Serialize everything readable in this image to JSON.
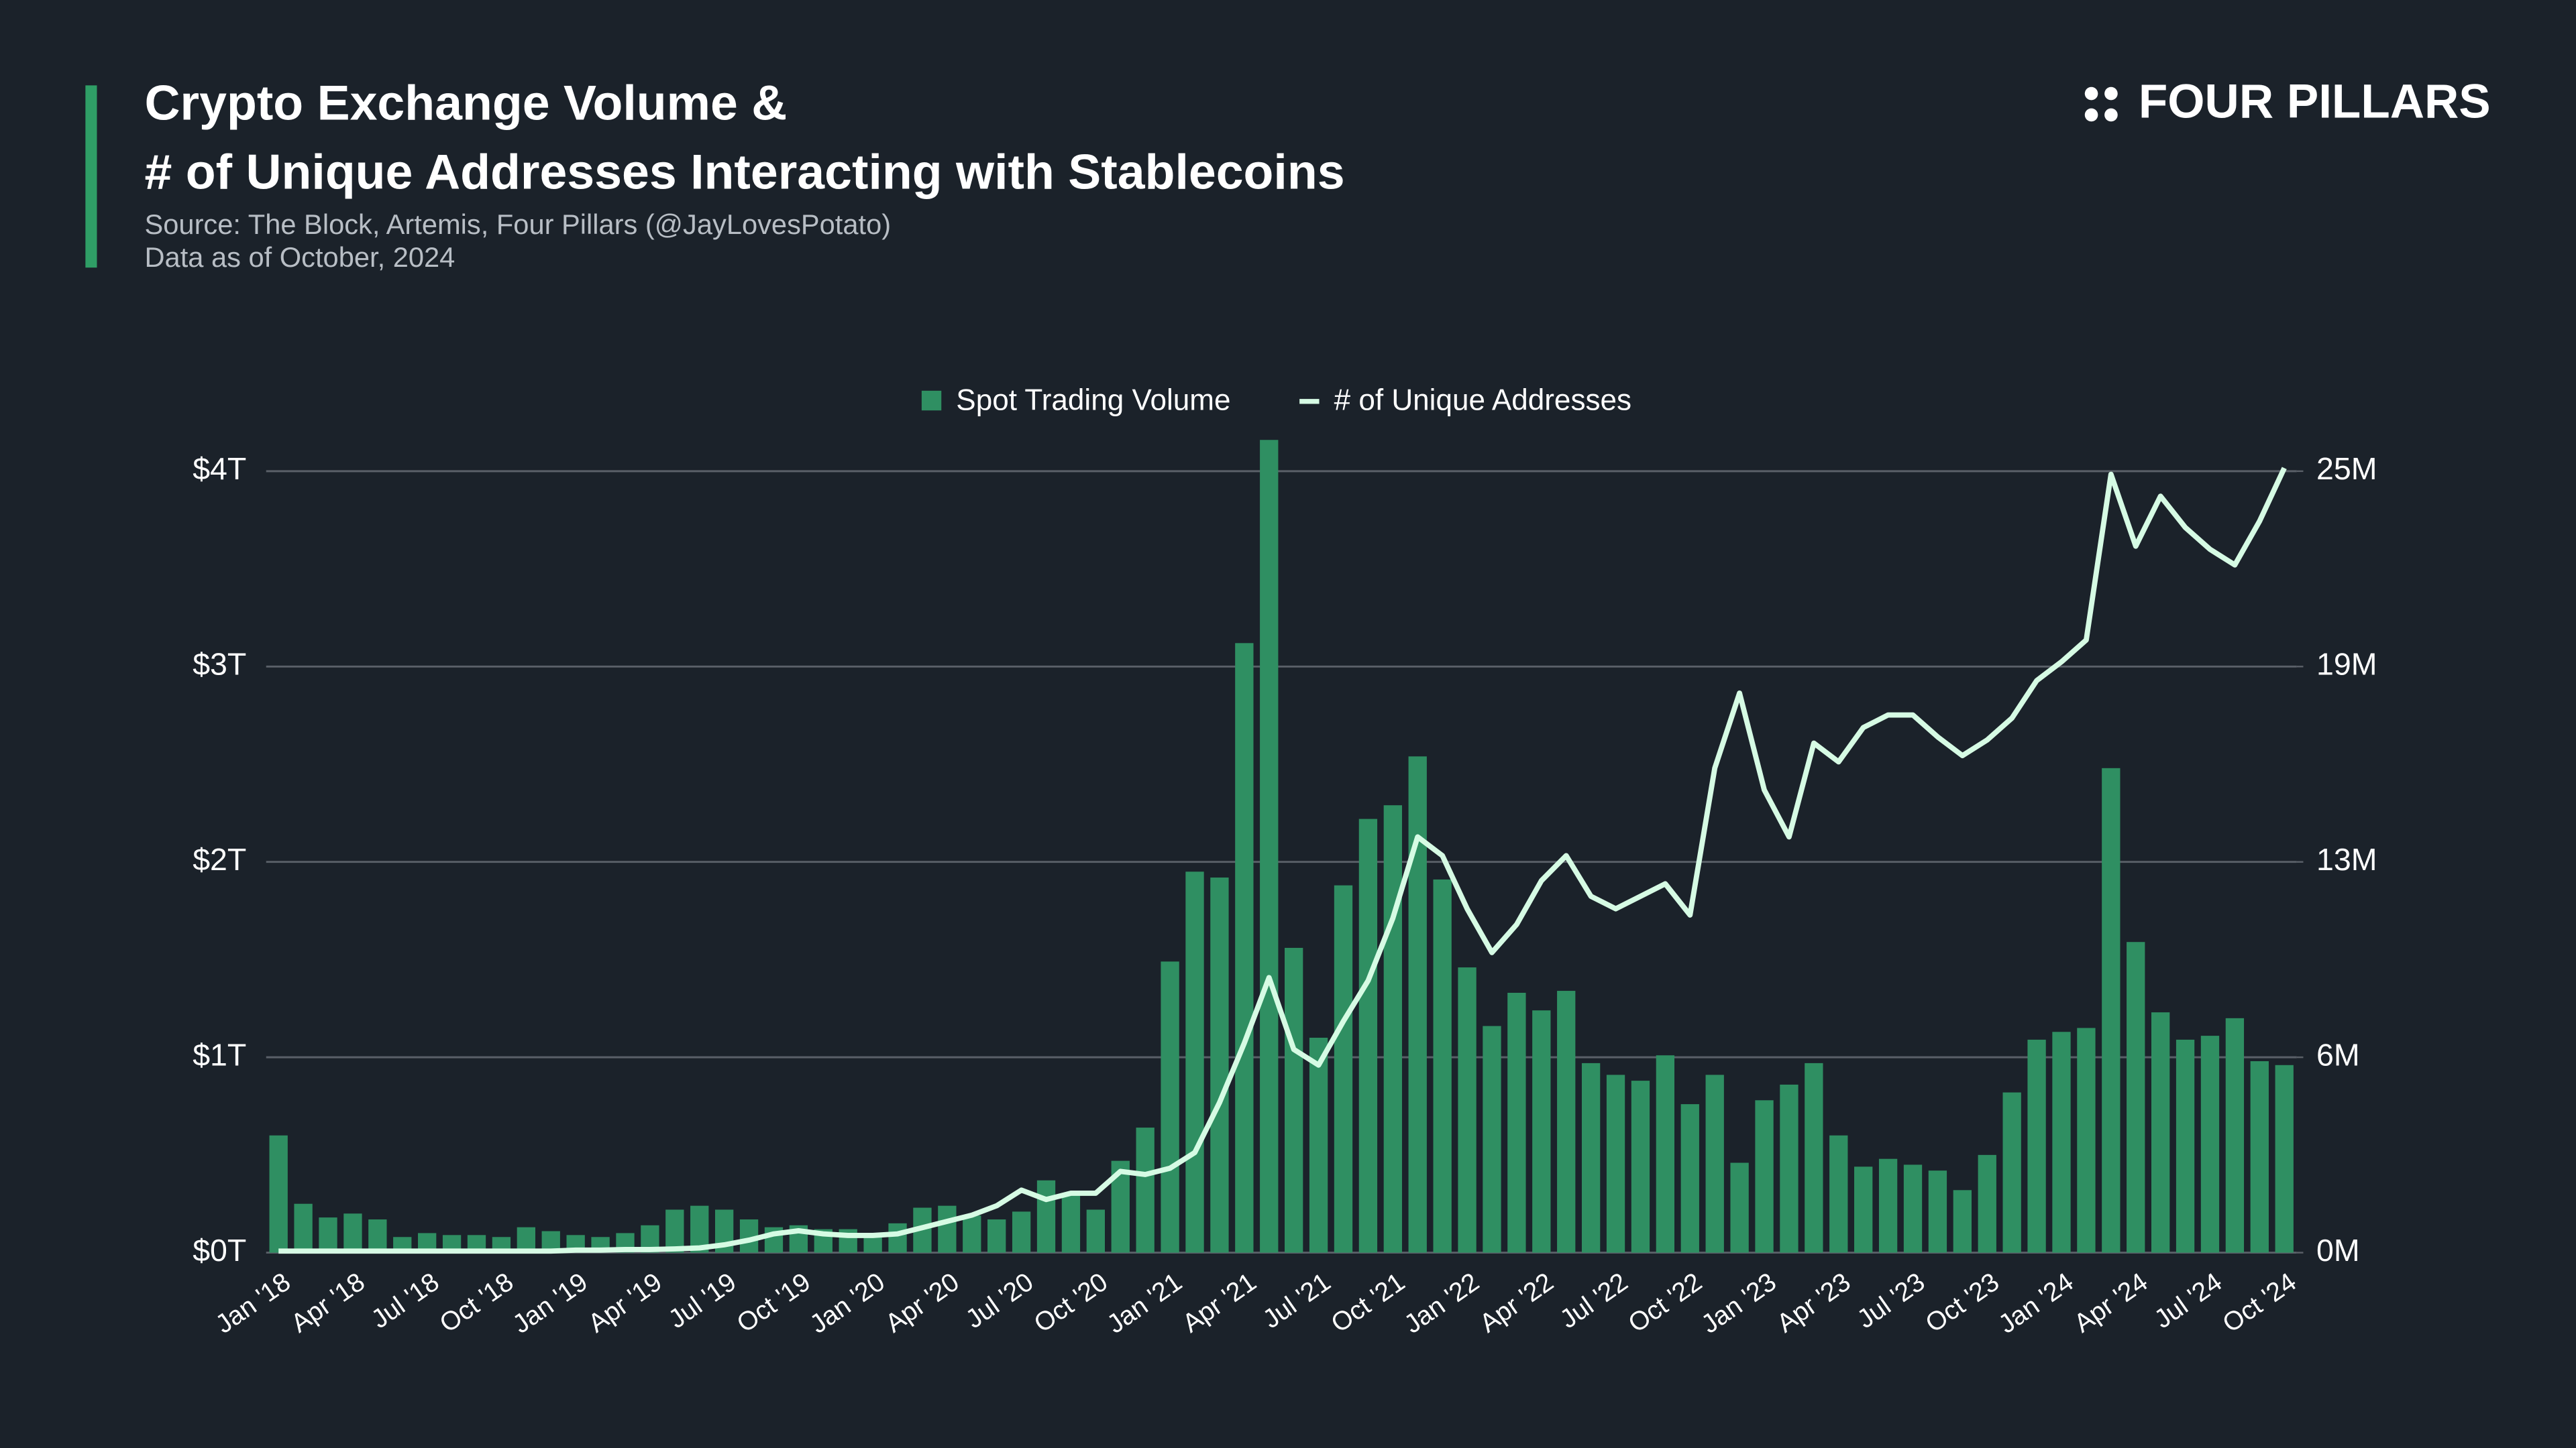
{
  "title_lines": [
    "Crypto Exchange Volume &",
    "# of Unique Addresses Interacting with Stablecoins"
  ],
  "source": "Source: The Block, Artemis, Four Pillars (@JayLovesPotato)",
  "date_note": "Data as of October, 2024",
  "brand": "FOUR PILLARS",
  "chart_data": {
    "type": "bar-line",
    "categories": [
      "Jan '18",
      null,
      null,
      "Apr '18",
      null,
      null,
      "Jul '18",
      null,
      null,
      "Oct '18",
      null,
      null,
      "Jan '19",
      null,
      null,
      "Apr '19",
      null,
      null,
      "Jul '19",
      null,
      null,
      "Oct '19",
      null,
      null,
      "Jan '20",
      null,
      null,
      "Apr '20",
      null,
      null,
      "Jul '20",
      null,
      null,
      "Oct '20",
      null,
      null,
      "Jan '21",
      null,
      null,
      "Apr '21",
      null,
      null,
      "Jul '21",
      null,
      null,
      "Oct '21",
      null,
      null,
      "Jan '22",
      null,
      null,
      "Apr '22",
      null,
      null,
      "Jul '22",
      null,
      null,
      "Oct '22",
      null,
      null,
      "Jan '23",
      null,
      null,
      "Apr '23",
      null,
      null,
      "Jul '23",
      null,
      null,
      "Oct '23",
      null,
      null,
      "Jan '24",
      null,
      null,
      "Apr '24",
      null,
      null,
      "Jul '24",
      null,
      null,
      "Oct '24"
    ],
    "series": [
      {
        "name": "Spot Trading Volume",
        "kind": "bar",
        "color": "#2f8f62",
        "values": [
          0.6,
          0.25,
          0.18,
          0.2,
          0.17,
          0.08,
          0.1,
          0.09,
          0.09,
          0.08,
          0.13,
          0.11,
          0.09,
          0.08,
          0.1,
          0.14,
          0.22,
          0.24,
          0.22,
          0.17,
          0.13,
          0.14,
          0.12,
          0.12,
          0.1,
          0.15,
          0.23,
          0.24,
          0.19,
          0.17,
          0.21,
          0.37,
          0.3,
          0.22,
          0.47,
          0.64,
          1.49,
          1.95,
          1.92,
          3.12,
          4.16,
          1.56,
          1.1,
          1.88,
          2.22,
          2.29,
          2.54,
          1.91,
          1.46,
          1.16,
          1.33,
          1.24,
          1.34,
          0.97,
          0.91,
          0.88,
          1.01,
          0.76,
          0.91,
          0.46,
          0.78,
          0.86,
          0.97,
          0.6,
          0.44,
          0.48,
          0.45,
          0.42,
          0.32,
          0.5,
          0.82,
          1.09,
          1.13,
          1.15,
          2.48,
          1.59,
          1.23,
          1.09,
          1.11,
          1.2,
          0.98,
          0.96
        ]
      },
      {
        "name": "# of Unique Addresses",
        "kind": "line",
        "axis": "y2",
        "color": "#d6fbe4",
        "values": [
          0.05,
          0.05,
          0.05,
          0.05,
          0.05,
          0.05,
          0.05,
          0.05,
          0.05,
          0.05,
          0.05,
          0.05,
          0.08,
          0.08,
          0.1,
          0.1,
          0.12,
          0.15,
          0.25,
          0.4,
          0.6,
          0.7,
          0.6,
          0.55,
          0.55,
          0.6,
          0.8,
          1.0,
          1.2,
          1.5,
          2.0,
          1.7,
          1.9,
          1.9,
          2.6,
          2.5,
          2.7,
          3.2,
          4.8,
          6.7,
          8.8,
          6.5,
          6.0,
          7.4,
          8.7,
          10.7,
          13.3,
          12.7,
          11.0,
          9.6,
          10.5,
          11.9,
          12.7,
          11.4,
          11.0,
          11.4,
          11.8,
          10.8,
          15.5,
          17.9,
          14.8,
          13.3,
          16.3,
          15.7,
          16.8,
          17.2,
          17.2,
          16.5,
          15.9,
          16.4,
          17.1,
          18.3,
          18.9,
          19.6,
          24.9,
          22.6,
          24.2,
          23.2,
          22.5,
          22.0,
          23.4,
          25.1
        ]
      }
    ],
    "ylim": [
      0,
      4
    ],
    "yticks": [
      {
        "value": 0,
        "label": "$0T"
      },
      {
        "value": 1,
        "label": "$1T"
      },
      {
        "value": 2,
        "label": "$2T"
      },
      {
        "value": 3,
        "label": "$3T"
      },
      {
        "value": 4,
        "label": "$4T"
      }
    ],
    "y2lim": [
      0,
      25
    ],
    "y2ticks": [
      {
        "value": 0,
        "label": "0M"
      },
      {
        "value": 6.25,
        "label": "6M"
      },
      {
        "value": 12.5,
        "label": "13M"
      },
      {
        "value": 18.75,
        "label": "19M"
      },
      {
        "value": 25,
        "label": "25M"
      }
    ],
    "grid": true,
    "legend": "top"
  }
}
